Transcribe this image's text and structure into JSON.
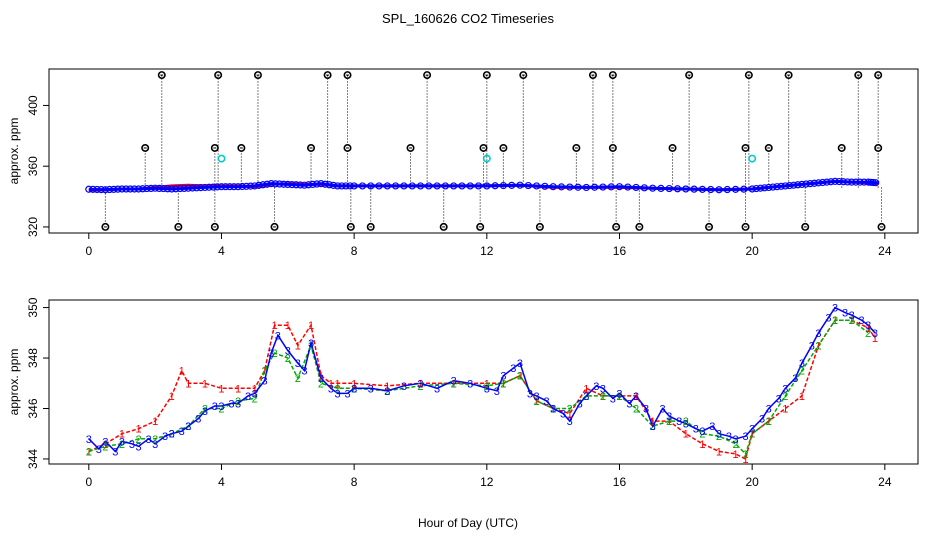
{
  "chart_data": {
    "type": "scatter",
    "title": "SPL_160626  CO2 Timeseries",
    "xlabel": "Hour of Day (UTC)",
    "colors": {
      "series1": "#ff0000",
      "series2": "#00cc00",
      "series3": "#0000ff",
      "outlier": "#000000",
      "highlight": "#00cccc"
    },
    "panels": [
      {
        "id": "top",
        "ylabel": "approx. ppm",
        "xlim": [
          -1.2,
          25
        ],
        "ylim": [
          316,
          424
        ],
        "xticks": [
          0,
          4,
          8,
          12,
          16,
          20,
          24
        ],
        "yticks": [
          320,
          360,
          400
        ],
        "series": [
          {
            "name": "1",
            "color": "#ff0000",
            "x": [
              0,
              0.5,
              1,
              1.5,
              2,
              2.5,
              3,
              3.5,
              4,
              4.5,
              5,
              5.5,
              6,
              6.5,
              7,
              7.5,
              8,
              9,
              10,
              11,
              12,
              13,
              14,
              15,
              16,
              17,
              18,
              19,
              20,
              20.5,
              21,
              21.5,
              22,
              22.5,
              23,
              23.5,
              23.8
            ],
            "y": [
              344,
              344.5,
              345,
              345,
              346,
              347,
              347.5,
              347,
              347,
              347,
              346.5,
              348,
              348.5,
              348,
              348,
              347,
              347,
              347,
              347,
              347,
              347,
              347.5,
              346,
              346,
              346,
              345.5,
              345,
              344.5,
              345,
              346,
              347,
              348,
              349,
              350,
              349.5,
              349,
              348.5
            ]
          },
          {
            "name": "3",
            "color": "#0000ff",
            "x": [
              0,
              0.5,
              1,
              1.5,
              2,
              2.5,
              3,
              3.5,
              4,
              4.5,
              5,
              5.5,
              6,
              6.5,
              7,
              7.5,
              8,
              9,
              10,
              11,
              12,
              13,
              14,
              15,
              16,
              17,
              18,
              19,
              20,
              20.5,
              21,
              21.5,
              22,
              22.5,
              23,
              23.5,
              23.8
            ],
            "y": [
              344.8,
              344.5,
              345,
              345,
              345.5,
              345,
              345.5,
              346,
              346.5,
              346.5,
              347,
              348.5,
              348,
              347.5,
              348.5,
              347,
              347,
              347,
              347,
              347,
              347,
              347.5,
              346.5,
              346,
              346.5,
              345.5,
              345,
              344.5,
              345,
              346,
              347,
              348,
              349,
              350,
              349.5,
              349.5,
              349
            ]
          }
        ],
        "outliers_high": {
          "x": [
            2.2,
            3.9,
            5.1,
            7.2,
            7.8,
            10.2,
            12,
            13.1,
            15.2,
            15.8,
            18.1,
            19.9,
            21.1,
            23.2,
            23.8
          ],
          "y": 420
        },
        "outliers_mid": {
          "x": [
            1.7,
            3.8,
            4.6,
            6.7,
            7.8,
            9.7,
            11.9,
            12.5,
            14.7,
            15.8,
            17.6,
            19.8,
            20.5,
            22.7,
            23.8
          ],
          "y": 372
        },
        "outliers_low": {
          "x": [
            0.5,
            2.7,
            3.8,
            5.6,
            7.9,
            8.5,
            10.7,
            11.8,
            13.6,
            15.9,
            16.6,
            18.7,
            19.8,
            21.6,
            23.9
          ],
          "y": 320
        },
        "highlights": {
          "x": [
            4,
            12,
            20
          ],
          "y": 365
        }
      },
      {
        "id": "bottom",
        "ylabel": "approx. ppm",
        "xlim": [
          -1.2,
          25
        ],
        "ylim": [
          343.8,
          350.3
        ],
        "xticks": [
          0,
          4,
          8,
          12,
          16,
          20,
          24
        ],
        "yticks": [
          344,
          346,
          348,
          350
        ],
        "series": [
          {
            "name": "1",
            "symbol": "1",
            "color": "#ff0000",
            "x": [
              0,
              0.5,
              1,
              1.5,
              2,
              2.5,
              2.8,
              3,
              3.5,
              4,
              4.5,
              5,
              5.3,
              5.6,
              6,
              6.3,
              6.7,
              7,
              7.3,
              7.5,
              8,
              9,
              10,
              11,
              12,
              12.5,
              13,
              13.5,
              14,
              14.5,
              15,
              15.5,
              16,
              16.5,
              17,
              17.5,
              18,
              18.5,
              19,
              19.5,
              19.8,
              20,
              20.5,
              21,
              21.5,
              22,
              22.5,
              23,
              23.5,
              23.7
            ],
            "y": [
              344.3,
              344.6,
              345,
              345.2,
              345.5,
              346.5,
              347.5,
              347,
              347,
              346.8,
              346.8,
              346.8,
              347.5,
              349.3,
              349.3,
              348.5,
              349.3,
              347.3,
              347,
              347,
              347,
              346.9,
              347,
              347,
              347,
              347,
              347.3,
              346.3,
              346,
              345.8,
              346.8,
              346.5,
              346.5,
              346.5,
              345.5,
              345.5,
              345,
              344.6,
              344.3,
              344.2,
              344.0,
              345,
              345.5,
              346,
              346.5,
              348.5,
              349.5,
              349.5,
              349.2,
              348.8
            ]
          },
          {
            "name": "2",
            "symbol": "2",
            "color": "#00aa00",
            "x": [
              0,
              0.5,
              1,
              1.5,
              2,
              2.5,
              3,
              3.5,
              4,
              4.5,
              5,
              5.3,
              5.6,
              6,
              6.3,
              6.7,
              7,
              7.5,
              8,
              9,
              10,
              11,
              12,
              12.5,
              13,
              13.5,
              14,
              14.5,
              15,
              15.5,
              16,
              16.5,
              17,
              17.5,
              18,
              18.5,
              19,
              19.5,
              19.8,
              20,
              20.5,
              21,
              21.5,
              22,
              22.5,
              23,
              23.5
            ],
            "y": [
              344.3,
              344.5,
              344.6,
              344.8,
              344.8,
              345,
              345.3,
              346,
              346,
              346.3,
              346.4,
              347.5,
              348.2,
              348,
              347.2,
              348.5,
              347,
              346.8,
              346.8,
              346.7,
              346.9,
              347,
              346.9,
              347,
              347.3,
              346.3,
              346,
              346,
              346.5,
              346.5,
              346.5,
              346,
              345.3,
              345.5,
              345.5,
              345,
              344.9,
              344.6,
              344.2,
              345,
              345.5,
              346.5,
              347.5,
              348.5,
              349.5,
              349.5,
              349
            ]
          },
          {
            "name": "3",
            "symbol": "3",
            "color": "#0000ff",
            "x": [
              0,
              0.3,
              0.5,
              0.8,
              1,
              1.3,
              1.5,
              1.8,
              2,
              2.3,
              2.5,
              2.8,
              3,
              3.3,
              3.5,
              3.8,
              4,
              4.3,
              4.5,
              4.8,
              5,
              5.3,
              5.5,
              5.7,
              6,
              6.3,
              6.5,
              6.7,
              7,
              7.3,
              7.5,
              7.8,
              8,
              8.5,
              9,
              9.5,
              10,
              10.5,
              11,
              11.5,
              12,
              12.3,
              12.5,
              12.8,
              13,
              13.3,
              13.5,
              13.8,
              14,
              14.3,
              14.5,
              14.8,
              15,
              15.3,
              15.5,
              15.8,
              16,
              16.3,
              16.5,
              16.8,
              17,
              17.3,
              17.5,
              17.8,
              18,
              18.3,
              18.5,
              18.8,
              19,
              19.3,
              19.5,
              19.8,
              20,
              20.3,
              20.5,
              20.8,
              21,
              21.3,
              21.5,
              21.8,
              22,
              22.3,
              22.5,
              22.8,
              23,
              23.3,
              23.5,
              23.7
            ],
            "y": [
              344.8,
              344.4,
              344.7,
              344.3,
              344.7,
              344.6,
              344.5,
              344.8,
              344.6,
              344.9,
              345.0,
              345.1,
              345.3,
              345.6,
              345.9,
              346.1,
              346.1,
              346.2,
              346.2,
              346.5,
              346.6,
              347.1,
              348.2,
              348.9,
              348.3,
              347.8,
              347.5,
              348.6,
              347.2,
              346.8,
              346.6,
              346.6,
              346.8,
              346.8,
              346.7,
              346.9,
              347.0,
              346.8,
              347.1,
              347.0,
              346.8,
              346.7,
              347.3,
              347.6,
              347.8,
              346.6,
              346.5,
              346.3,
              346.0,
              345.8,
              345.5,
              346.2,
              346.5,
              346.9,
              346.8,
              346.4,
              346.6,
              346.2,
              346.5,
              346.0,
              345.3,
              346.0,
              345.7,
              345.5,
              345.4,
              345.2,
              345.1,
              345.3,
              345.0,
              344.9,
              344.8,
              344.9,
              345.2,
              345.6,
              346.0,
              346.4,
              346.8,
              347.2,
              347.8,
              348.5,
              349.0,
              349.6,
              350.0,
              349.8,
              349.7,
              349.5,
              349.3,
              349.0
            ]
          }
        ]
      }
    ]
  }
}
